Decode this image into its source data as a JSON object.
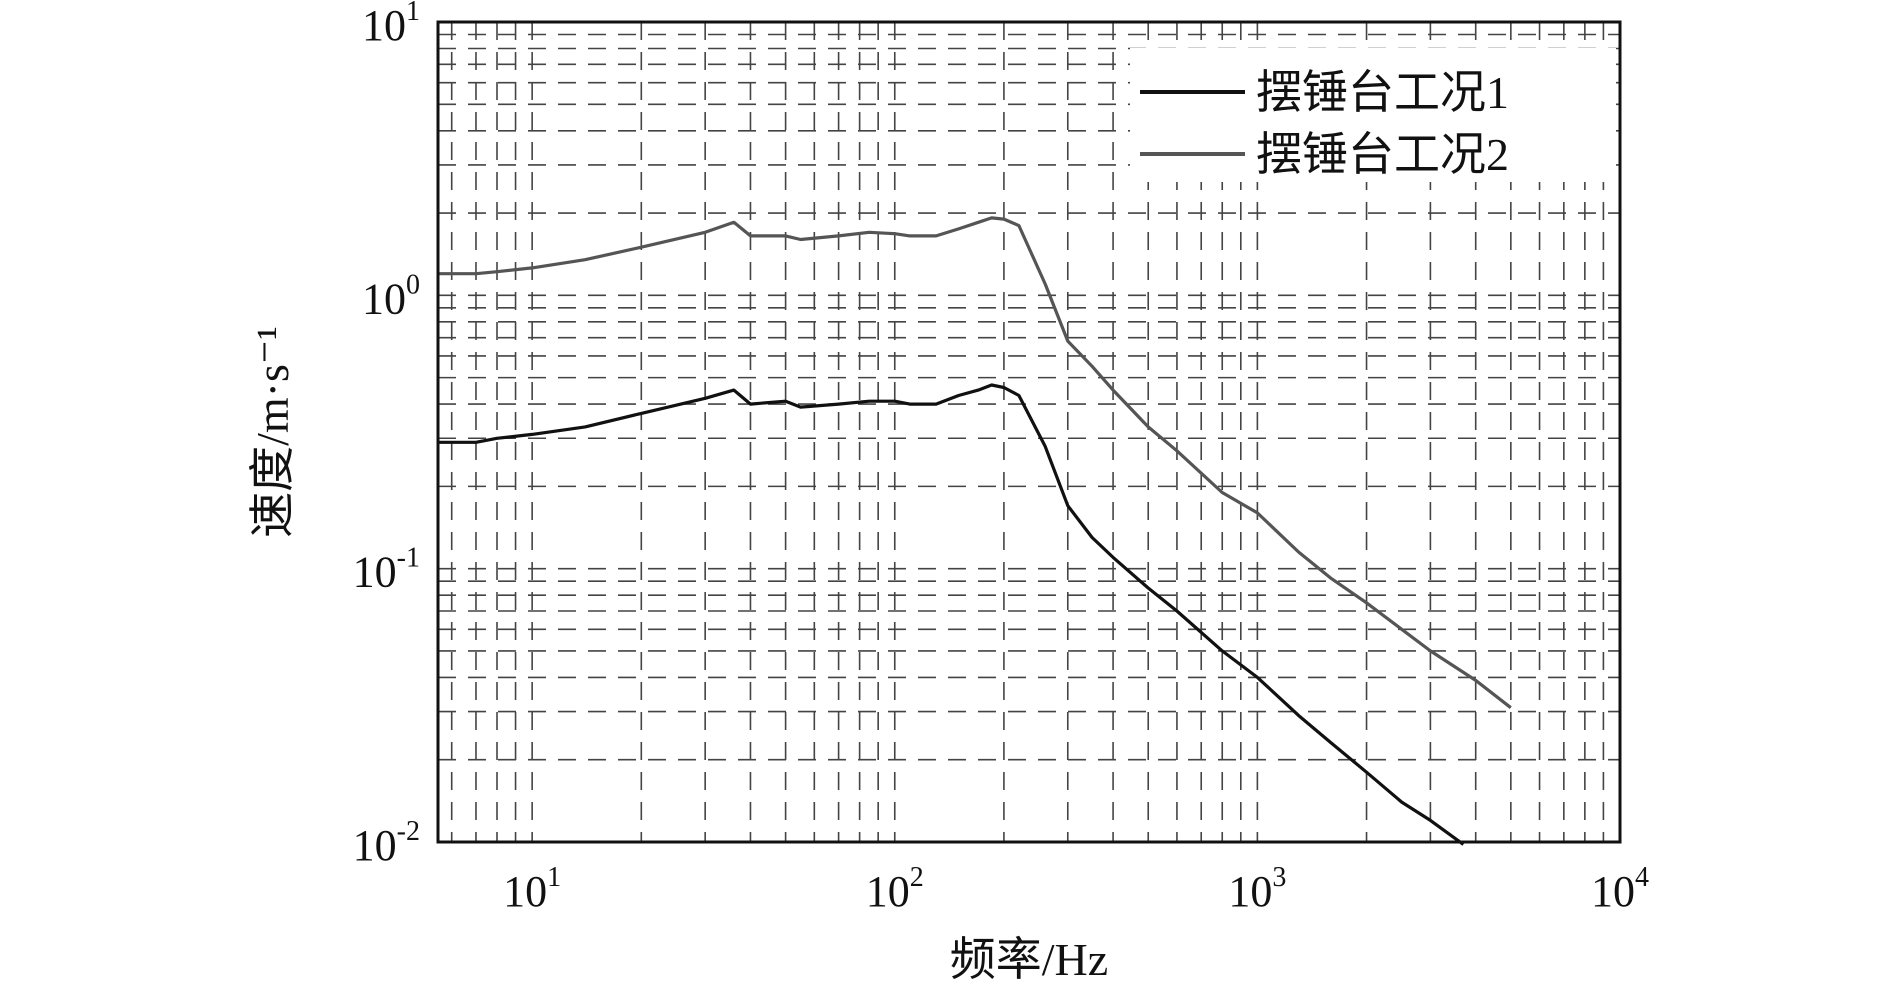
{
  "chart_data": {
    "type": "line",
    "xscale": "log",
    "yscale": "log",
    "xlim": [
      5.5,
      10000
    ],
    "ylim": [
      0.01,
      10
    ],
    "grid": true,
    "grid_style": "dashed",
    "legend_position": "top-right",
    "xlabel": "频率/Hz",
    "ylabel": "速度/m·s⁻¹",
    "x_ticks": [
      {
        "base": "10",
        "exp": "1"
      },
      {
        "base": "10",
        "exp": "2"
      },
      {
        "base": "10",
        "exp": "3"
      },
      {
        "base": "10",
        "exp": "4"
      }
    ],
    "x_tick_values": [
      10,
      100,
      1000,
      10000
    ],
    "y_ticks": [
      {
        "base": "10",
        "exp": "-2"
      },
      {
        "base": "10",
        "exp": "-1"
      },
      {
        "base": "10",
        "exp": "0"
      },
      {
        "base": "10",
        "exp": "1"
      }
    ],
    "y_tick_values": [
      0.01,
      0.1,
      1,
      10
    ],
    "series": [
      {
        "name": "摆锤台工况1",
        "color": "#111111",
        "x": [
          5.5,
          7,
          8,
          10,
          14,
          20,
          30,
          36,
          40,
          50,
          55,
          70,
          85,
          100,
          110,
          130,
          150,
          170,
          185,
          200,
          220,
          260,
          300,
          350,
          400,
          500,
          600,
          800,
          1000,
          1300,
          1600,
          2000,
          2500,
          3000,
          3700
        ],
        "y": [
          0.29,
          0.29,
          0.3,
          0.31,
          0.33,
          0.37,
          0.42,
          0.45,
          0.4,
          0.41,
          0.39,
          0.4,
          0.41,
          0.41,
          0.4,
          0.4,
          0.43,
          0.45,
          0.47,
          0.46,
          0.43,
          0.28,
          0.17,
          0.13,
          0.11,
          0.085,
          0.07,
          0.05,
          0.04,
          0.029,
          0.023,
          0.018,
          0.014,
          0.012,
          0.0098
        ]
      },
      {
        "name": "摆锤台工况2",
        "color": "#555555",
        "x": [
          5.5,
          7,
          8,
          10,
          14,
          20,
          30,
          36,
          40,
          50,
          55,
          70,
          85,
          100,
          110,
          130,
          150,
          170,
          185,
          200,
          220,
          260,
          300,
          350,
          400,
          500,
          600,
          800,
          1000,
          1300,
          1600,
          2000,
          2500,
          3000,
          4000,
          5000
        ],
        "y": [
          1.2,
          1.2,
          1.22,
          1.26,
          1.35,
          1.5,
          1.7,
          1.85,
          1.65,
          1.65,
          1.6,
          1.65,
          1.7,
          1.68,
          1.65,
          1.65,
          1.75,
          1.85,
          1.92,
          1.9,
          1.8,
          1.1,
          0.68,
          0.55,
          0.45,
          0.33,
          0.27,
          0.19,
          0.16,
          0.115,
          0.092,
          0.075,
          0.06,
          0.05,
          0.039,
          0.031
        ]
      }
    ]
  }
}
